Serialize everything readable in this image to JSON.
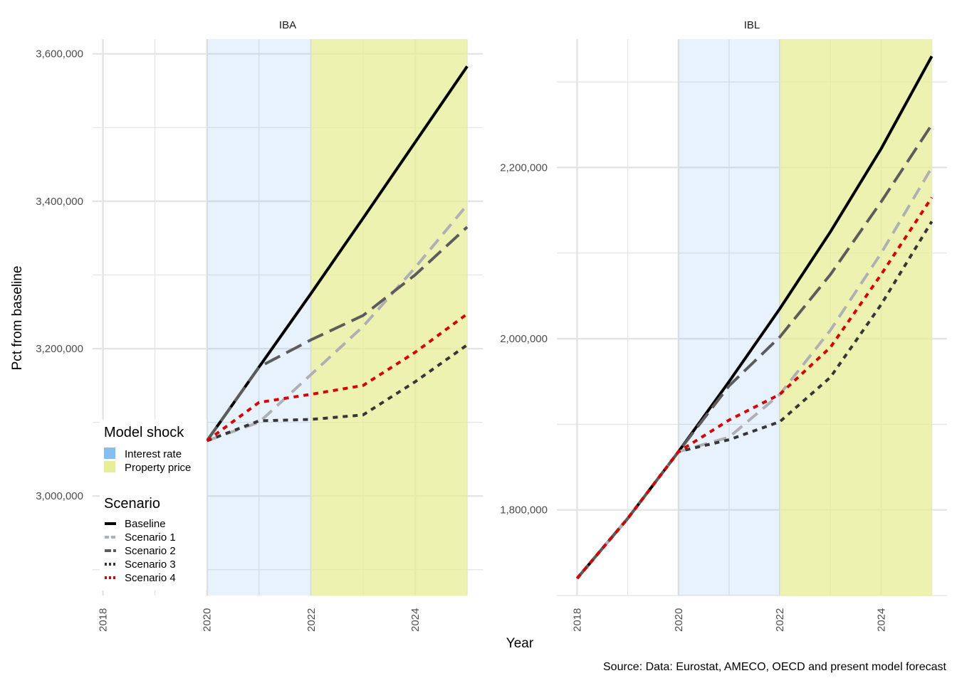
{
  "caption": "Source: Data: Eurostat, AMECO, OECD and present model forecast",
  "colors": {
    "interest_rate": "#85bff2",
    "property_price": "#e8ed96",
    "baseline": "#000000",
    "scenario1": "#aeb0b6",
    "scenario2": "#5c5c5c",
    "scenario3": "#363636",
    "scenario4": "#dc0000",
    "grid": "#e4e4e4"
  },
  "legend": {
    "shock_title": "Model shock",
    "shock_items": [
      {
        "label": "Interest rate",
        "color": "#85bff2"
      },
      {
        "label": "Property price",
        "color": "#e8ed96"
      }
    ],
    "scenario_title": "Scenario",
    "scenario_items": [
      {
        "label": "Baseline",
        "color": "#000000",
        "dash": "solid"
      },
      {
        "label": "Scenario 1",
        "color": "#aeb0b6",
        "dash": "dashed"
      },
      {
        "label": "Scenario 2",
        "color": "#5c5c5c",
        "dash": "longdash"
      },
      {
        "label": "Scenario 3",
        "color": "#363636",
        "dash": "dotted"
      },
      {
        "label": "Scenario 4",
        "color": "#dc0000",
        "dash": "dotted"
      }
    ]
  },
  "chart_data": {
    "type": "line",
    "xlabel": "Year",
    "ylabel": "Pct from baseline",
    "shaded_regions": [
      {
        "name": "Interest rate",
        "x_start": 2020,
        "x_end": 2022
      },
      {
        "name": "Property price",
        "x_start": 2022,
        "x_end": 2025
      }
    ],
    "panels": [
      {
        "title": "IBA",
        "xlim": [
          2017.8,
          2025.3
        ],
        "ylim": [
          2865000,
          3620000
        ],
        "x_ticks": [
          2018,
          2020,
          2022,
          2024
        ],
        "y_ticks": [
          3000000,
          3200000,
          3400000,
          3600000
        ],
        "y_tick_labels": [
          "3,000,000",
          "3,200,000",
          "3,400,000",
          "3,600,000"
        ],
        "series": [
          {
            "name": "Baseline",
            "x": [
              2020,
              2021,
              2022,
              2023,
              2024,
              2025
            ],
            "values": [
              3075000,
              3175000,
              3275000,
              3377000,
              3480000,
              3583000
            ]
          },
          {
            "name": "Scenario 1",
            "x": [
              2020,
              2021,
              2022,
              2023,
              2024,
              2025
            ],
            "values": [
              3075000,
              3100000,
              3165000,
              3230000,
              3310000,
              3395000
            ]
          },
          {
            "name": "Scenario 2",
            "x": [
              2020,
              2021,
              2022,
              2023,
              2024,
              2025
            ],
            "values": [
              3075000,
              3175000,
              3212000,
              3245000,
              3300000,
              3365000
            ]
          },
          {
            "name": "Scenario 3",
            "x": [
              2020,
              2021,
              2022,
              2023,
              2024,
              2025
            ],
            "values": [
              3075000,
              3102000,
              3104000,
              3110000,
              3155000,
              3205000
            ]
          },
          {
            "name": "Scenario 4",
            "x": [
              2020,
              2021,
              2022,
              2023,
              2024,
              2025
            ],
            "values": [
              3075000,
              3127000,
              3138000,
              3150000,
              3195000,
              3247000
            ]
          }
        ]
      },
      {
        "title": "IBL",
        "xlim": [
          2017.6,
          2025.3
        ],
        "ylim": [
          1700000,
          2350000
        ],
        "x_ticks": [
          2018,
          2020,
          2022,
          2024
        ],
        "y_ticks": [
          1800000,
          2000000,
          2200000
        ],
        "y_tick_labels": [
          "1,800,000",
          "2,000,000",
          "2,200,000"
        ],
        "series": [
          {
            "name": "Baseline",
            "x": [
              2018,
              2019,
              2020,
              2021,
              2022,
              2023,
              2024,
              2025
            ],
            "values": [
              1720000,
              1790000,
              1868000,
              1950000,
              2035000,
              2125000,
              2222000,
              2330000
            ]
          },
          {
            "name": "Scenario 1",
            "x": [
              2018,
              2019,
              2020,
              2021,
              2022,
              2023,
              2024,
              2025
            ],
            "values": [
              1720000,
              1790000,
              1868000,
              1885000,
              1935000,
              2010000,
              2100000,
              2200000
            ]
          },
          {
            "name": "Scenario 2",
            "x": [
              2018,
              2019,
              2020,
              2021,
              2022,
              2023,
              2024,
              2025
            ],
            "values": [
              1720000,
              1790000,
              1868000,
              1945000,
              2002000,
              2075000,
              2160000,
              2250000
            ]
          },
          {
            "name": "Scenario 3",
            "x": [
              2018,
              2019,
              2020,
              2021,
              2022,
              2023,
              2024,
              2025
            ],
            "values": [
              1720000,
              1790000,
              1868000,
              1882000,
              1903000,
              1955000,
              2040000,
              2137000
            ]
          },
          {
            "name": "Scenario 4",
            "x": [
              2018,
              2019,
              2020,
              2021,
              2022,
              2023,
              2024,
              2025
            ],
            "values": [
              1720000,
              1790000,
              1868000,
              1905000,
              1935000,
              1990000,
              2075000,
              2165000
            ]
          }
        ]
      }
    ]
  }
}
